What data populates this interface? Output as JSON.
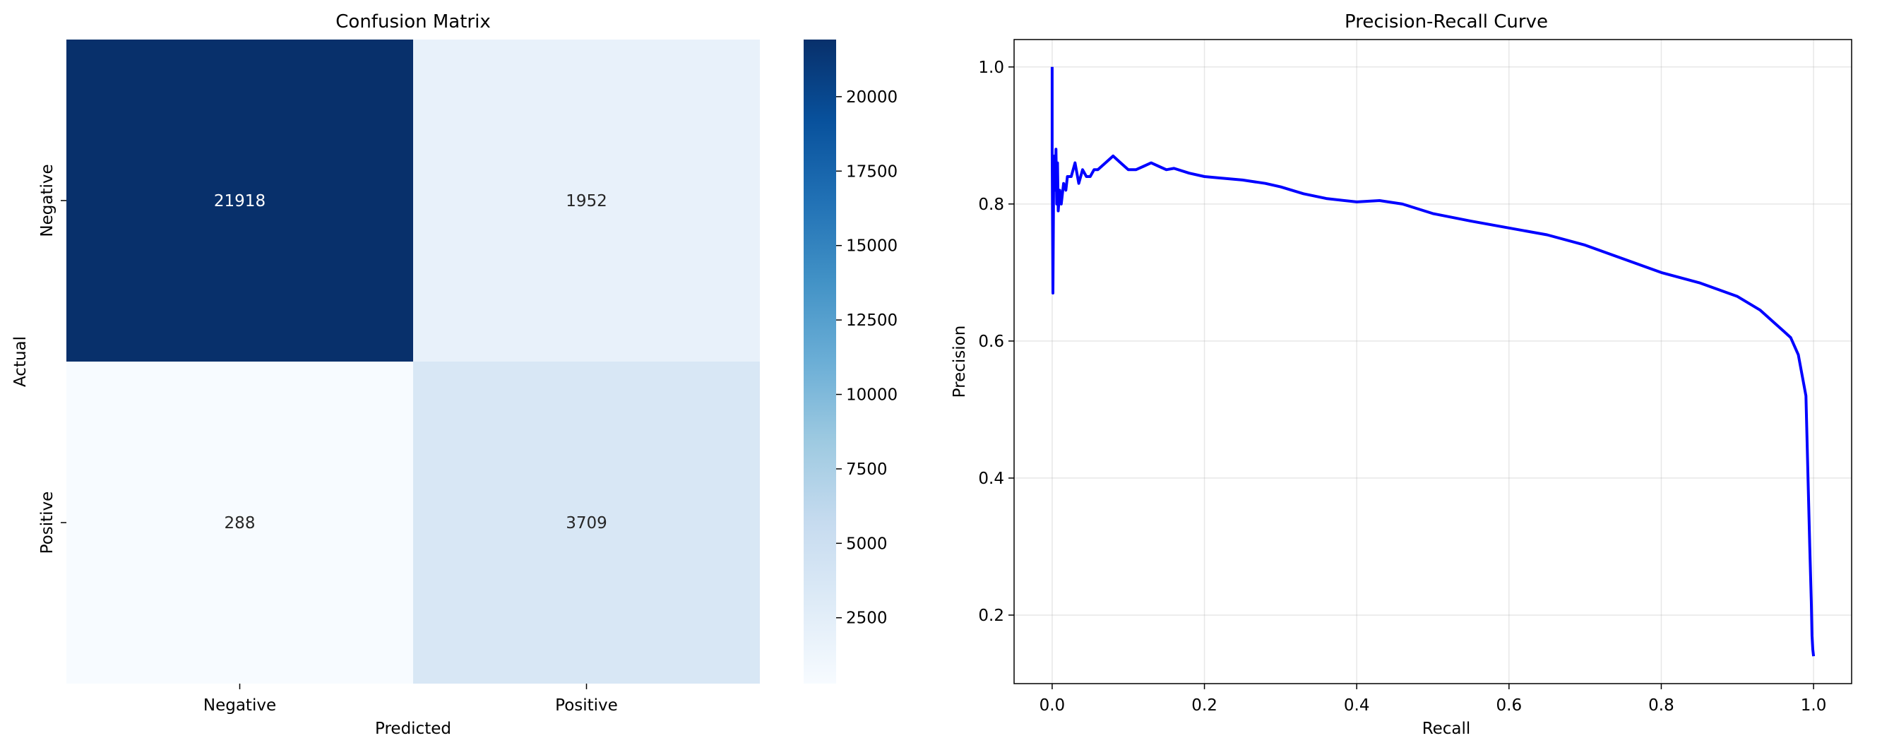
{
  "chart_data": [
    {
      "type": "heatmap",
      "title": "Confusion Matrix",
      "xlabel": "Predicted",
      "ylabel": "Actual",
      "x_categories": [
        "Negative",
        "Positive"
      ],
      "y_categories": [
        "Negative",
        "Positive"
      ],
      "values": [
        [
          21918,
          1952
        ],
        [
          288,
          3709
        ]
      ],
      "colormap": "Blues",
      "colorbar": {
        "min": 288,
        "max": 21918,
        "ticks": [
          2500,
          5000,
          7500,
          10000,
          12500,
          15000,
          17500,
          20000
        ],
        "tick_labels": [
          "2500",
          "5000",
          "7500",
          "10000",
          "12500",
          "15000",
          "17500",
          "20000"
        ]
      }
    },
    {
      "type": "line",
      "title": "Precision-Recall Curve",
      "xlabel": "Recall",
      "ylabel": "Precision",
      "xlim": [
        -0.05,
        1.05
      ],
      "ylim": [
        0.1,
        1.04
      ],
      "xticks": [
        0.0,
        0.2,
        0.4,
        0.6,
        0.8,
        1.0
      ],
      "xtick_labels": [
        "0.0",
        "0.2",
        "0.4",
        "0.6",
        "0.8",
        "1.0"
      ],
      "yticks": [
        0.2,
        0.4,
        0.6,
        0.8,
        1.0
      ],
      "ytick_labels": [
        "0.2",
        "0.4",
        "0.6",
        "0.8",
        "1.0"
      ],
      "grid": true,
      "line_color": "#0000ff",
      "series": [
        {
          "x": [
            0.0,
            0.0,
            0.001,
            0.002,
            0.003,
            0.004,
            0.005,
            0.006,
            0.007,
            0.008,
            0.01,
            0.012,
            0.015,
            0.018,
            0.02,
            0.025,
            0.03,
            0.035,
            0.04,
            0.045,
            0.05,
            0.055,
            0.06,
            0.07,
            0.08,
            0.09,
            0.1,
            0.11,
            0.12,
            0.13,
            0.14,
            0.15,
            0.16,
            0.18,
            0.2,
            0.22,
            0.25,
            0.28,
            0.3,
            0.33,
            0.36,
            0.4,
            0.43,
            0.46,
            0.5,
            0.55,
            0.6,
            0.65,
            0.7,
            0.75,
            0.8,
            0.85,
            0.9,
            0.93,
            0.95,
            0.96,
            0.97,
            0.98,
            0.99,
            0.995,
            0.997,
            0.998,
            0.999,
            1.0
          ],
          "y": [
            1.0,
            0.88,
            0.67,
            0.85,
            0.87,
            0.82,
            0.88,
            0.8,
            0.86,
            0.79,
            0.82,
            0.8,
            0.83,
            0.82,
            0.84,
            0.84,
            0.86,
            0.83,
            0.85,
            0.84,
            0.84,
            0.85,
            0.85,
            0.86,
            0.87,
            0.86,
            0.85,
            0.85,
            0.855,
            0.86,
            0.855,
            0.85,
            0.852,
            0.845,
            0.84,
            0.838,
            0.835,
            0.83,
            0.825,
            0.815,
            0.808,
            0.803,
            0.805,
            0.8,
            0.786,
            0.775,
            0.765,
            0.755,
            0.74,
            0.72,
            0.7,
            0.685,
            0.665,
            0.645,
            0.625,
            0.615,
            0.605,
            0.58,
            0.52,
            0.3,
            0.22,
            0.17,
            0.15,
            0.14
          ]
        }
      ]
    }
  ]
}
